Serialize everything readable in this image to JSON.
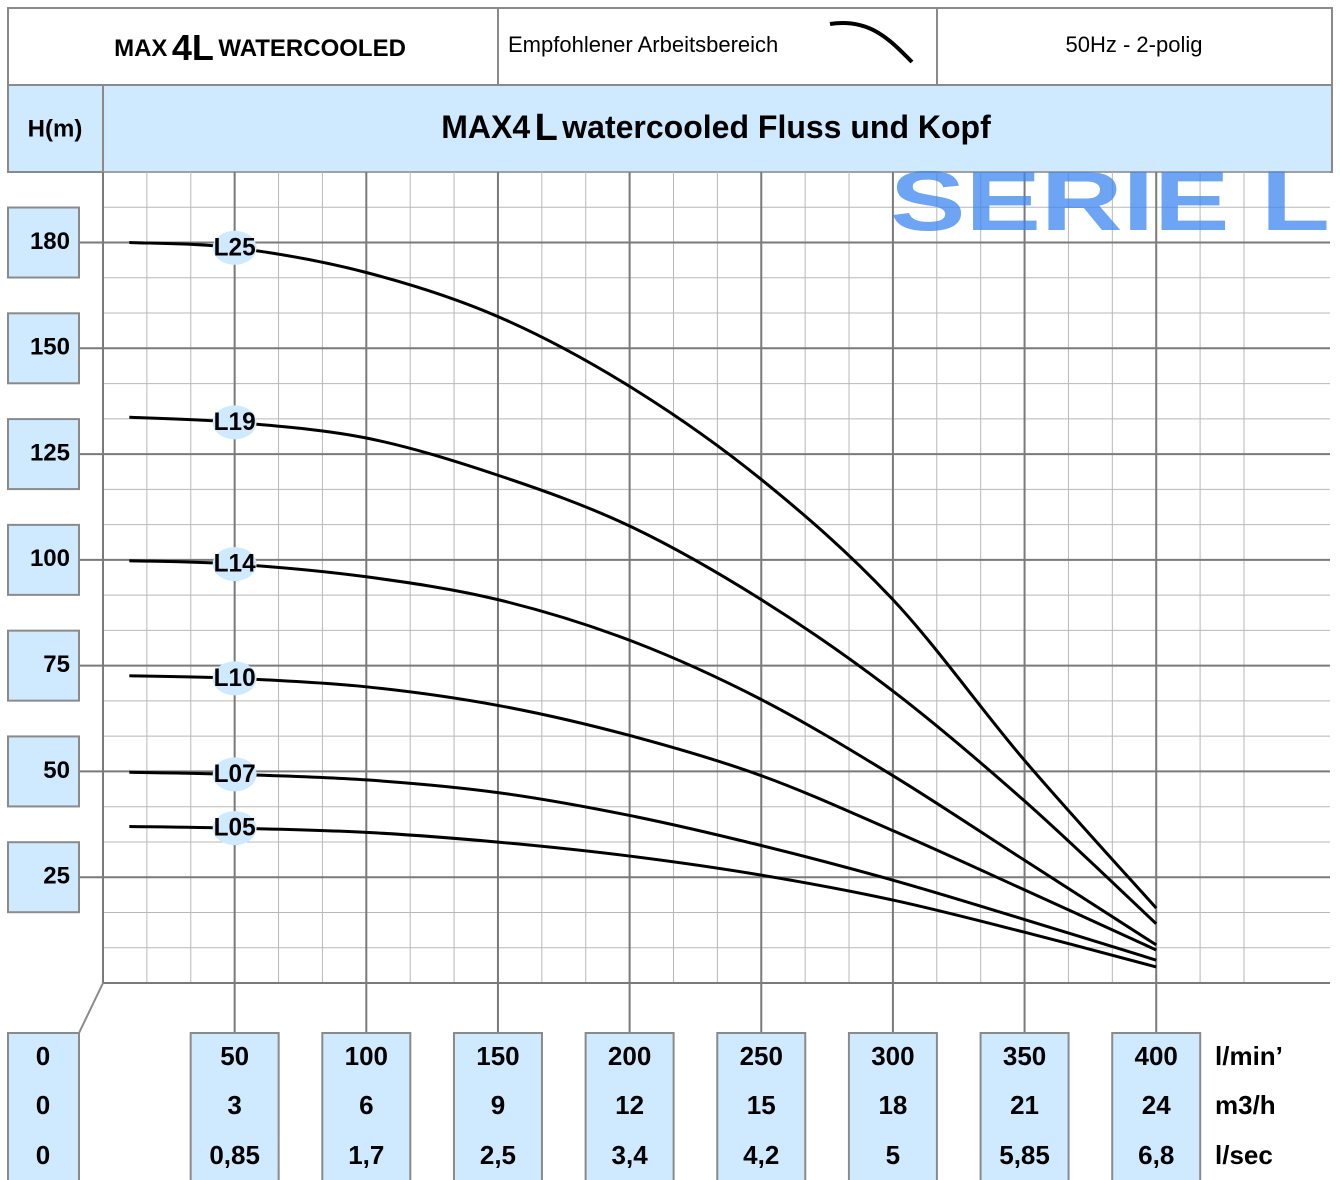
{
  "header": {
    "title_parts": [
      "MAX",
      "4L",
      "WATERCOOLED"
    ],
    "legend_text": "Empfohlener Arbeitsbereich",
    "frequency": "50Hz - 2-polig"
  },
  "chart_data": {
    "type": "line",
    "title_parts": [
      "MAX4",
      "L",
      "watercooled Fluss und Kopf"
    ],
    "y_label": "H(m)",
    "watermark": "SERIE L",
    "x": [
      10,
      50,
      100,
      150,
      200,
      250,
      300,
      350,
      400
    ],
    "xlim": [
      0,
      466
    ],
    "xticks": [
      0,
      50,
      100,
      150,
      200,
      250,
      300,
      350,
      400
    ],
    "x_unit": "l/min’",
    "secondary_x": [
      {
        "unit": "m3/h",
        "ticks": [
          0,
          3,
          6,
          9,
          12,
          15,
          18,
          21,
          24
        ]
      },
      {
        "unit": "l/sec",
        "ticks": [
          0,
          {
            "value": 0.85,
            "label": "0,85"
          },
          {
            "value": 1.7,
            "label": "1,7"
          },
          {
            "value": 2.5,
            "label": "2,5"
          },
          {
            "value": 3.4,
            "label": "3,4"
          },
          {
            "value": 4.2,
            "label": "4,2"
          },
          5,
          {
            "value": 5.85,
            "label": "5,85"
          },
          {
            "value": 6.8,
            "label": "6,8"
          }
        ]
      }
    ],
    "ylim": [
      0,
      200
    ],
    "yticks": [
      25,
      50,
      75,
      100,
      125,
      150,
      180
    ],
    "grid": true,
    "series": [
      {
        "name": "L25",
        "color": "#000000",
        "values": [
          180,
          178.5,
          171.5,
          159,
          141,
          119,
          90.6,
          52.6,
          17.7
        ]
      },
      {
        "name": "L19",
        "color": "#000000",
        "values": [
          133.7,
          132.5,
          128.8,
          120,
          108,
          90.6,
          69,
          43,
          14
        ]
      },
      {
        "name": "L14",
        "color": "#000000",
        "values": [
          99.8,
          99,
          96,
          90.6,
          81,
          67,
          49,
          29,
          9
        ]
      },
      {
        "name": "L10",
        "color": "#000000",
        "values": [
          72.6,
          72,
          70,
          65.6,
          58.5,
          49,
          36,
          22,
          7.8
        ]
      },
      {
        "name": "L07",
        "color": "#000000",
        "values": [
          49.8,
          49.3,
          48,
          45,
          39.6,
          32.5,
          24.3,
          15,
          5.4
        ]
      },
      {
        "name": "L05",
        "color": "#000000",
        "values": [
          37,
          36.6,
          35.6,
          33.3,
          30,
          25.5,
          19.6,
          12,
          3.8
        ]
      }
    ]
  }
}
